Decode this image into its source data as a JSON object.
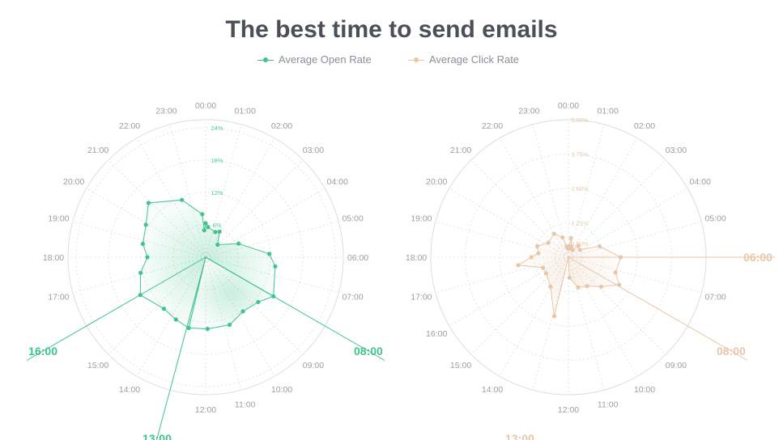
{
  "title": "The best time to send emails",
  "legend": [
    {
      "label": "Average Open Rate",
      "color": "#3ec48c"
    },
    {
      "label": "Average Click Rate",
      "color": "#e8c6a7"
    }
  ],
  "colors": {
    "open": "#3ec48c",
    "click": "#e8c6a7",
    "grid": "#dddddd",
    "label": "#9a9ea3"
  },
  "chart_data": [
    {
      "type": "radar",
      "series": [
        {
          "name": "Average Open Rate",
          "color": "#3ec48c"
        }
      ],
      "categories": [
        "00:00",
        "01:00",
        "02:00",
        "03:00",
        "04:00",
        "05:00",
        "06:00",
        "07:00",
        "08:00",
        "09:00",
        "10:00",
        "11:00",
        "12:00",
        "13:00",
        "14:00",
        "15:00",
        "16:00",
        "17:00",
        "18:00",
        "19:00",
        "20:00",
        "21:00",
        "22:00",
        "23:00"
      ],
      "points": [
        {
          "angle_hour": 0.0,
          "value": 6.3
        },
        {
          "angle_hour": 0.3,
          "value": 5.6
        },
        {
          "angle_hour": 1.4,
          "value": 5.0
        },
        {
          "angle_hour": 1.9,
          "value": 5.4
        },
        {
          "angle_hour": 2.9,
          "value": 3.2
        },
        {
          "angle_hour": 4.5,
          "value": 6.6
        },
        {
          "angle_hour": 5.8,
          "value": 11.8
        },
        {
          "angle_hour": 6.5,
          "value": 13.0
        },
        {
          "angle_hour": 8.0,
          "value": 14.5
        },
        {
          "angle_hour": 8.7,
          "value": 12.8
        },
        {
          "angle_hour": 9.7,
          "value": 12.2
        },
        {
          "angle_hour": 10.7,
          "value": 13.3
        },
        {
          "angle_hour": 11.9,
          "value": 13.3
        },
        {
          "angle_hour": 12.9,
          "value": 13.5
        },
        {
          "angle_hour": 13.7,
          "value": 12.8
        },
        {
          "angle_hour": 14.6,
          "value": 12.3
        },
        {
          "angle_hour": 16.0,
          "value": 14.0
        },
        {
          "angle_hour": 17.1,
          "value": 12.4
        },
        {
          "angle_hour": 18.0,
          "value": 10.8
        },
        {
          "angle_hour": 18.8,
          "value": 11.9
        },
        {
          "angle_hour": 19.9,
          "value": 12.6
        },
        {
          "angle_hour": 20.9,
          "value": 14.6
        },
        {
          "angle_hour": 22.5,
          "value": 11.5
        },
        {
          "angle_hour": 23.7,
          "value": 8.0
        },
        {
          "angle_hour": 23.8,
          "value": 5.0
        }
      ],
      "origin_spokes_hour": [
        8.0,
        13.0
      ],
      "highlights": [
        {
          "hour": 8.0,
          "label": "08:00",
          "extended": true
        },
        {
          "hour": 13.0,
          "label": "13:00",
          "extended": true
        },
        {
          "hour": 16.0,
          "label": "16:00",
          "extended": true
        }
      ],
      "rings": [
        6,
        12,
        18,
        24
      ],
      "ring_labels": [
        "6%",
        "12%",
        "18%",
        "24%"
      ],
      "rmax": 25.5
    },
    {
      "type": "radar",
      "series": [
        {
          "name": "Average Click Rate",
          "color": "#e8c6a7"
        }
      ],
      "categories": [
        "00:00",
        "01:00",
        "02:00",
        "03:00",
        "04:00",
        "05:00",
        "06:00",
        "07:00",
        "08:00",
        "09:00",
        "10:00",
        "11:00",
        "12:00",
        "13:00",
        "14:00",
        "15:00",
        "16:00",
        "17:00",
        "18:00",
        "19:00",
        "20:00",
        "21:00",
        "22:00",
        "23:00"
      ],
      "points": [
        {
          "angle_hour": 0.0,
          "value": 0.3
        },
        {
          "angle_hour": 0.5,
          "value": 0.7
        },
        {
          "angle_hour": 1.0,
          "value": 0.4
        },
        {
          "angle_hour": 2.0,
          "value": 0.3
        },
        {
          "angle_hour": 2.7,
          "value": 0.55
        },
        {
          "angle_hour": 3.8,
          "value": 0.5
        },
        {
          "angle_hour": 4.7,
          "value": 1.2
        },
        {
          "angle_hour": 6.0,
          "value": 1.9
        },
        {
          "angle_hour": 7.2,
          "value": 1.8
        },
        {
          "angle_hour": 7.9,
          "value": 2.1
        },
        {
          "angle_hour": 8.8,
          "value": 1.6
        },
        {
          "angle_hour": 9.8,
          "value": 1.25
        },
        {
          "angle_hour": 10.8,
          "value": 1.15
        },
        {
          "angle_hour": 11.8,
          "value": 0.75
        },
        {
          "angle_hour": 12.9,
          "value": 2.2
        },
        {
          "angle_hour": 14.1,
          "value": 1.25
        },
        {
          "angle_hour": 15.6,
          "value": 1.0
        },
        {
          "angle_hour": 16.5,
          "value": 1.0
        },
        {
          "angle_hour": 17.4,
          "value": 1.85
        },
        {
          "angle_hour": 18.0,
          "value": 1.35
        },
        {
          "angle_hour": 18.5,
          "value": 1.1
        },
        {
          "angle_hour": 19.3,
          "value": 1.2
        },
        {
          "angle_hour": 20.4,
          "value": 0.9
        },
        {
          "angle_hour": 21.9,
          "value": 1.0
        },
        {
          "angle_hour": 22.9,
          "value": 0.75
        },
        {
          "angle_hour": 23.4,
          "value": 0.38
        },
        {
          "angle_hour": 23.8,
          "value": 0.4
        }
      ],
      "origin_spokes_hour": [
        13.0
      ],
      "highlights": [
        {
          "hour": 6.0,
          "label": "06:00",
          "extended": true
        },
        {
          "hour": 8.0,
          "label": "08:00",
          "extended": true
        },
        {
          "hour": 13.0,
          "label": "13:00",
          "extended": false
        }
      ],
      "rings": [
        0.5,
        1.25,
        2.5,
        3.75,
        5.0
      ],
      "ring_labels": [
        "0.50%",
        "1.25%",
        "2.50%",
        "3.75%",
        "5.00%"
      ],
      "rmax": 5.0
    }
  ]
}
